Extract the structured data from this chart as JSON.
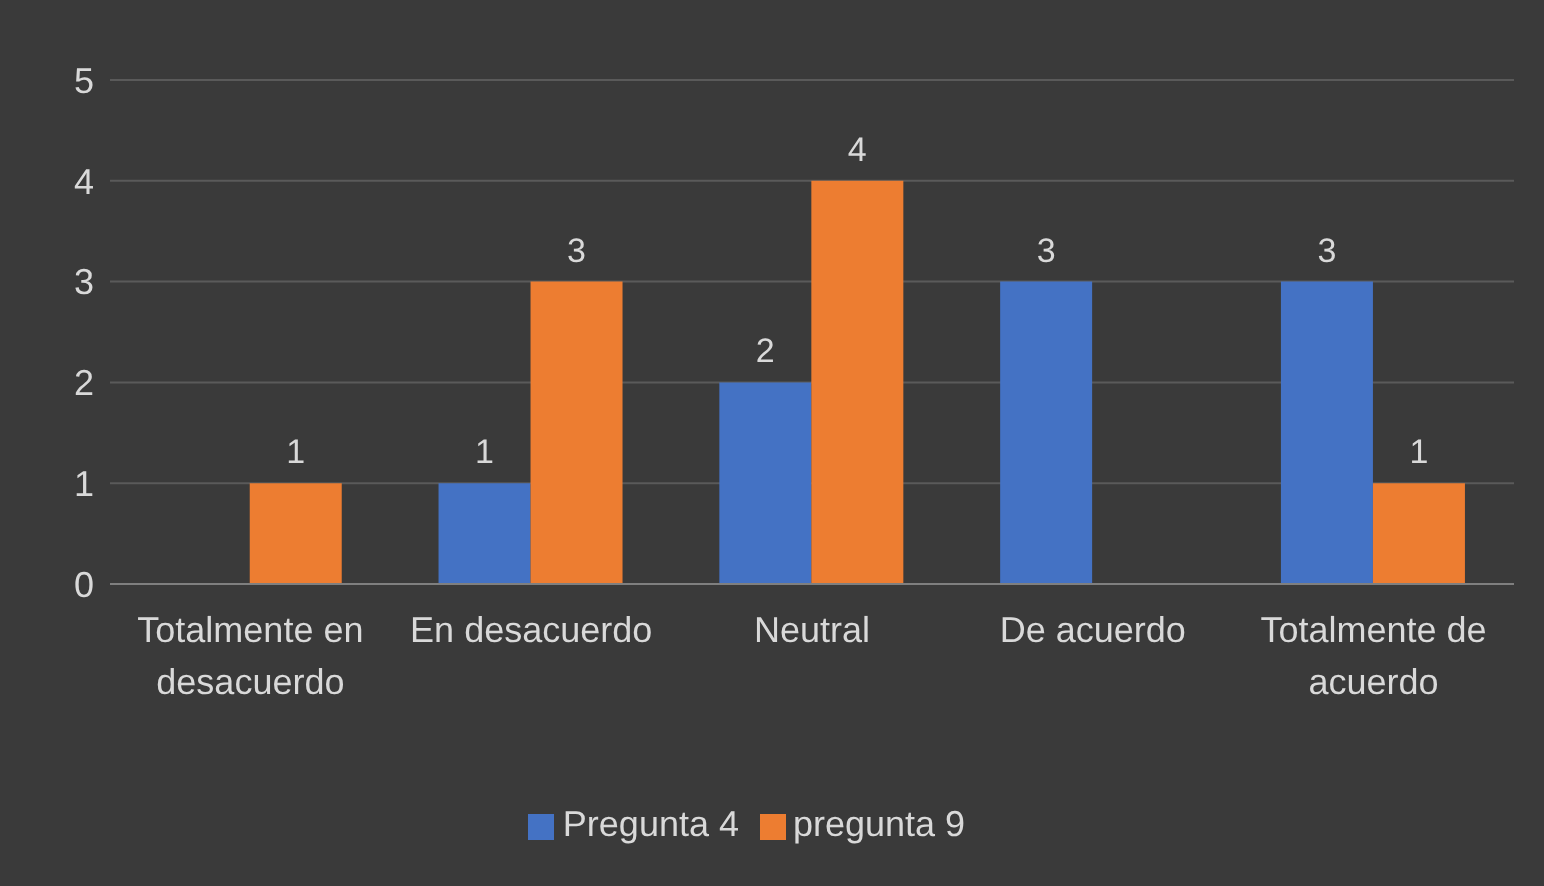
{
  "chart_data": {
    "type": "bar",
    "categories": [
      "Totalmente en desacuerdo",
      "En desacuerdo",
      "Neutral",
      "De acuerdo",
      "Totalmente de acuerdo"
    ],
    "series": [
      {
        "name": "Pregunta 4",
        "color": "#4472c4",
        "values": [
          null,
          1,
          2,
          3,
          3
        ]
      },
      {
        "name": "pregunta 9",
        "color": "#ed7d31",
        "values": [
          1,
          3,
          4,
          null,
          1
        ]
      }
    ],
    "ylim": [
      0,
      5
    ],
    "yticks": [
      0,
      1,
      2,
      3,
      4,
      5
    ],
    "grid": "y",
    "legend": "bottom",
    "data_labels": true
  }
}
